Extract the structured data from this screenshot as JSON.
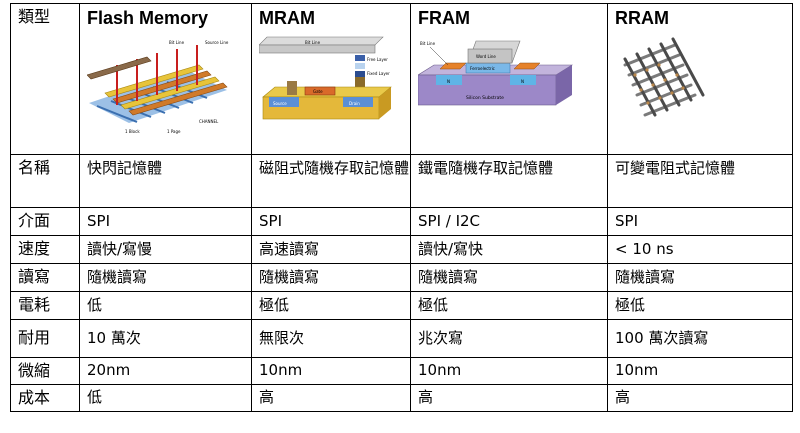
{
  "header": {
    "corner": "類型",
    "columns": [
      "Flash Memory",
      "MRAM",
      "FRAM",
      "RRAM"
    ]
  },
  "figures": {
    "flash": {
      "labels": [
        "Bit Line",
        "Source Line",
        "1 Block",
        "1 Page",
        "CHANNEL"
      ]
    },
    "mram": {
      "labels": [
        "Bit Line",
        "Free Layer",
        "Fixed Layer",
        "Gate",
        "Source",
        "Drain"
      ]
    },
    "fram": {
      "labels": [
        "Bit Line",
        "Word Line",
        "Ferroelectric",
        "N",
        "N",
        "Silicon Substrate"
      ]
    }
  },
  "rows": [
    {
      "label": "名稱",
      "cells": [
        "快閃記憶體",
        "磁阻式隨機存取記憶體",
        "鐵電隨機存取記憶體",
        "可變電阻式記憶體"
      ]
    },
    {
      "label": "介面",
      "cells": [
        "SPI",
        "SPI",
        "SPI / I2C",
        "SPI"
      ]
    },
    {
      "label": "速度",
      "cells": [
        "讀快/寫慢",
        "高速讀寫",
        "讀快/寫快",
        "< 10 ns"
      ]
    },
    {
      "label": "讀寫",
      "cells": [
        "隨機讀寫",
        "隨機讀寫",
        "隨機讀寫",
        "隨機讀寫"
      ]
    },
    {
      "label": "電耗",
      "cells": [
        "低",
        "極低",
        "極低",
        "極低"
      ]
    },
    {
      "label": "耐用",
      "cells": [
        "10 萬次",
        "無限次",
        "兆次寫",
        "100 萬次讀寫"
      ]
    },
    {
      "label": "微縮",
      "cells": [
        "20nm",
        "10nm",
        "10nm",
        "10nm"
      ]
    },
    {
      "label": "成本",
      "cells": [
        "低",
        "高",
        "高",
        "高"
      ]
    }
  ]
}
